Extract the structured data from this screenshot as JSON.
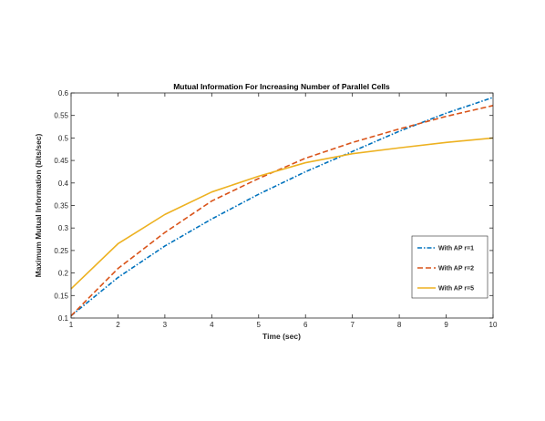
{
  "chart_data": {
    "type": "line",
    "title": "Mutual Information For Increasing Number of Parallel Cells",
    "xlabel": "Time (sec)",
    "ylabel": "Maximum Mutual Information (bits/sec)",
    "xlim": [
      1,
      10
    ],
    "ylim": [
      0.1,
      0.6
    ],
    "x_ticks": [
      1,
      2,
      3,
      4,
      5,
      6,
      7,
      8,
      9,
      10
    ],
    "y_ticks": [
      0.1,
      0.15,
      0.2,
      0.25,
      0.3,
      0.35,
      0.4,
      0.45,
      0.5,
      0.55,
      0.6
    ],
    "grid": false,
    "legend_position": "lower-right",
    "x": [
      1,
      2,
      3,
      4,
      5,
      6,
      7,
      8,
      9,
      10
    ],
    "series": [
      {
        "name": "With AP r=1",
        "values": [
          0.105,
          0.19,
          0.26,
          0.32,
          0.375,
          0.425,
          0.47,
          0.515,
          0.555,
          0.59
        ],
        "color": "#0072BD",
        "dash": "dash-dot"
      },
      {
        "name": "With AP r=2",
        "values": [
          0.105,
          0.21,
          0.29,
          0.36,
          0.41,
          0.455,
          0.49,
          0.52,
          0.548,
          0.572
        ],
        "color": "#D95319",
        "dash": "dashed"
      },
      {
        "name": "With AP r=5",
        "values": [
          0.165,
          0.265,
          0.33,
          0.38,
          0.415,
          0.445,
          0.465,
          0.478,
          0.49,
          0.5
        ],
        "color": "#EDB120",
        "dash": "solid"
      }
    ]
  }
}
